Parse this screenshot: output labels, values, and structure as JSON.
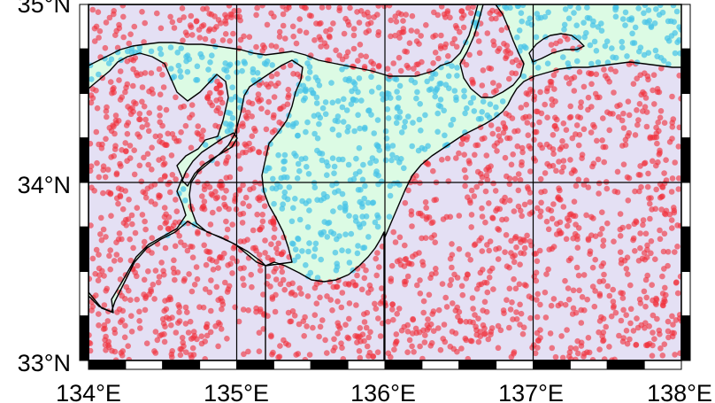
{
  "map": {
    "x_labels": [
      "134°E",
      "135°E",
      "136°E",
      "137°E",
      "138°E"
    ],
    "y_labels": [
      "35°N",
      "34°N",
      "33°N"
    ],
    "lon_range": [
      134,
      138
    ],
    "lat_range": [
      33,
      35
    ],
    "colors": {
      "land_fill": "#e4e0f4",
      "sea_fill": "#dcfbe4",
      "land_points": "#f0303c",
      "sea_points": "#48c4e8",
      "coastline": "#000000",
      "frame_dark": "#000000",
      "frame_light": "#ffffff",
      "grid": "#000000"
    }
  }
}
